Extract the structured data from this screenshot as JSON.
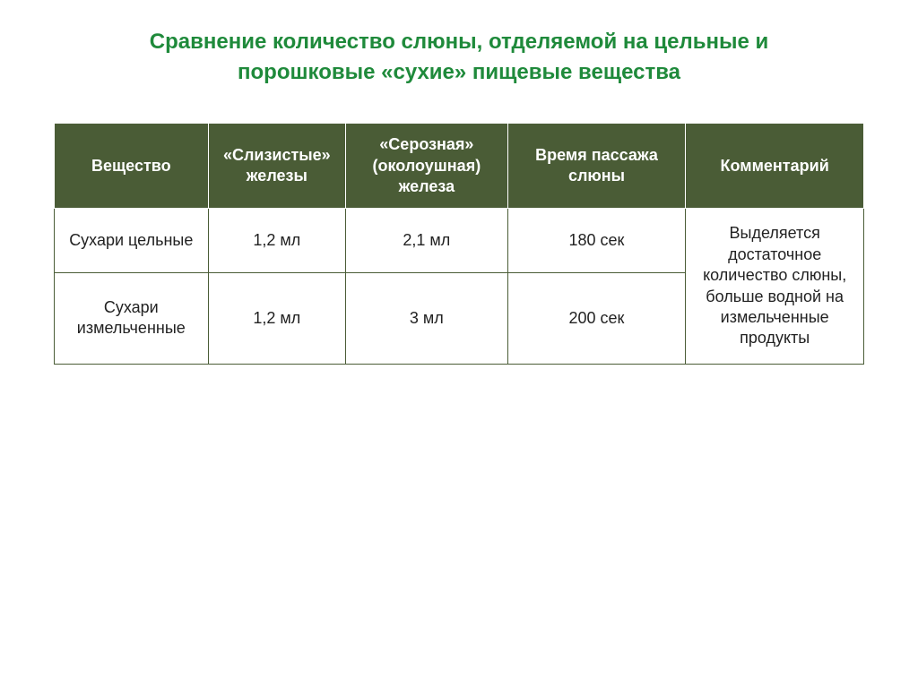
{
  "title_line1": "Сравнение количество слюны, отделяемой на цельные и",
  "title_line2": "порошковые «сухие» пищевые вещества",
  "table": {
    "headers": [
      "Вещество",
      "«Слизистые» железы",
      "«Серозная» (околоушная) железа",
      "Время пассажа слюны",
      "Комментарий"
    ],
    "rows": [
      {
        "substance": "Сухари цельные",
        "mucous": "1,2 мл",
        "serous": "2,1 мл",
        "time": "180 сек"
      },
      {
        "substance": "Сухари измельченные",
        "mucous": "1,2 мл",
        "serous": "3 мл",
        "time": "200 сек"
      }
    ],
    "comment": "Выделяется достаточное количество слюны, больше водной на измельченные продукты"
  },
  "styles": {
    "title_color": "#1f8a3b",
    "title_fontsize": 24,
    "title_weight": "bold",
    "header_bg": "#4a5c36",
    "header_color": "#ffffff",
    "header_fontsize": 18,
    "cell_fontsize": 18,
    "cell_color": "#222222",
    "border_color": "#4a5c36",
    "background": "#ffffff",
    "column_widths_pct": [
      19,
      17,
      20,
      22,
      22
    ]
  }
}
